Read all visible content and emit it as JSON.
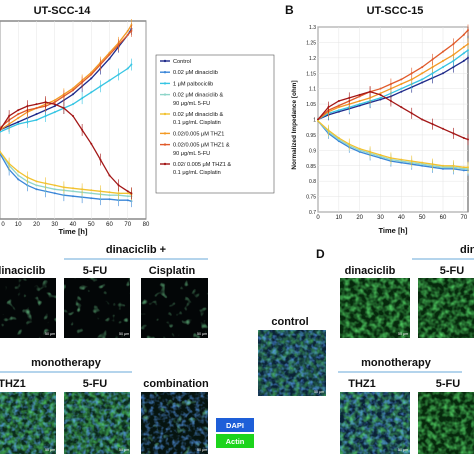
{
  "panel_a": {
    "title": "UT-SCC-14",
    "xlabel": "Time [h]",
    "legend": [
      {
        "label": "Control",
        "color": "#1f2a8a"
      },
      {
        "label": "0.02 μM dinaciclib",
        "color": "#3a86d8"
      },
      {
        "label": "1 μM palbociclib",
        "color": "#36c5e3"
      },
      {
        "label": "0.02 μM dinaciclib &",
        "label2": "90 μg/mL 5-FU",
        "color": "#8fd5c9"
      },
      {
        "label": "0.02 μM dinaciclib &",
        "label2": "0.1 μg/mL Cisplatin",
        "color": "#f2c230"
      },
      {
        "label": "0.02/0.005 μM THZ1",
        "color": "#f39a24"
      },
      {
        "label": "0.02/0.005 μM THZ1 &",
        "label2": "90 μg/mL 5-FU",
        "color": "#e05a2a"
      },
      {
        "label": "0.02/ 0.005 μM THZ1 &",
        "label2": "0.1 μg/mL Cisplatin",
        "color": "#a31616"
      }
    ],
    "xticks": [
      "0",
      "10",
      "20",
      "30",
      "40",
      "50",
      "60",
      "70",
      "80"
    ]
  },
  "panel_b": {
    "letter": "B",
    "title": "UT-SCC-15",
    "xlabel": "Time [h]",
    "ylabel": "Normalized Impedance [ohm]",
    "xticks": [
      "0",
      "10",
      "20",
      "30",
      "40",
      "50",
      "60",
      "70"
    ],
    "yticks": [
      "0.7",
      "0.75",
      "0.8",
      "0.85",
      "0.9",
      "0.95",
      "1",
      "1.05",
      "1.1",
      "1.15",
      "1.2",
      "1.25",
      "1.3"
    ]
  },
  "chart_data": [
    {
      "type": "line",
      "title": "UT-SCC-14",
      "xlabel": "Time [h]",
      "xlim": [
        0,
        80
      ],
      "ylim": [
        0,
        1
      ],
      "series": [
        {
          "name": "Control",
          "color": "#1f2a8a",
          "x": [
            0,
            5,
            10,
            15,
            20,
            25,
            30,
            35,
            40,
            45,
            50,
            55,
            60,
            65,
            70,
            72
          ],
          "y": [
            0.45,
            0.47,
            0.49,
            0.51,
            0.53,
            0.55,
            0.57,
            0.6,
            0.63,
            0.67,
            0.71,
            0.76,
            0.81,
            0.87,
            0.93,
            0.96
          ]
        },
        {
          "name": "0.02 μM dinaciclib",
          "color": "#3a86d8",
          "x": [
            0,
            5,
            10,
            15,
            20,
            25,
            30,
            35,
            40,
            45,
            50,
            55,
            60,
            65,
            70,
            72
          ],
          "y": [
            0.33,
            0.25,
            0.2,
            0.17,
            0.15,
            0.14,
            0.13,
            0.12,
            0.115,
            0.11,
            0.105,
            0.1,
            0.1,
            0.095,
            0.095,
            0.09
          ]
        },
        {
          "name": "1 μM palbociclib",
          "color": "#36c5e3",
          "x": [
            0,
            5,
            10,
            15,
            20,
            25,
            30,
            35,
            40,
            45,
            50,
            55,
            60,
            65,
            70,
            72
          ],
          "y": [
            0.44,
            0.46,
            0.48,
            0.49,
            0.5,
            0.52,
            0.54,
            0.56,
            0.58,
            0.61,
            0.64,
            0.67,
            0.7,
            0.73,
            0.76,
            0.78
          ]
        },
        {
          "name": "0.02 μM dinaciclib & 90 μg/mL 5-FU",
          "color": "#8fd5c9",
          "x": [
            0,
            5,
            10,
            15,
            20,
            25,
            30,
            35,
            40,
            45,
            50,
            55,
            60,
            65,
            70,
            72
          ],
          "y": [
            0.34,
            0.27,
            0.22,
            0.19,
            0.17,
            0.16,
            0.15,
            0.145,
            0.14,
            0.135,
            0.13,
            0.125,
            0.12,
            0.12,
            0.115,
            0.115
          ]
        },
        {
          "name": "0.02 μM dinaciclib & 0.1 μg/mL Cisplatin",
          "color": "#f2c230",
          "x": [
            0,
            5,
            10,
            15,
            20,
            25,
            30,
            35,
            40,
            45,
            50,
            55,
            60,
            65,
            70,
            72
          ],
          "y": [
            0.34,
            0.28,
            0.24,
            0.21,
            0.19,
            0.18,
            0.17,
            0.16,
            0.155,
            0.15,
            0.145,
            0.14,
            0.135,
            0.13,
            0.13,
            0.125
          ]
        },
        {
          "name": "0.02/0.005 μM THZ1",
          "color": "#f39a24",
          "x": [
            0,
            5,
            10,
            15,
            20,
            25,
            30,
            35,
            40,
            45,
            50,
            55,
            60,
            65,
            70,
            72
          ],
          "y": [
            0.45,
            0.48,
            0.51,
            0.54,
            0.56,
            0.58,
            0.6,
            0.63,
            0.66,
            0.7,
            0.74,
            0.79,
            0.84,
            0.89,
            0.95,
            0.98
          ]
        },
        {
          "name": "0.02/0.005 μM THZ1 & 90 μg/mL 5-FU",
          "color": "#e05a2a",
          "x": [
            0,
            5,
            10,
            15,
            20,
            25,
            30,
            35,
            40,
            45,
            50,
            55,
            60,
            65,
            70,
            72
          ],
          "y": [
            0.46,
            0.5,
            0.53,
            0.55,
            0.56,
            0.57,
            0.59,
            0.62,
            0.65,
            0.69,
            0.73,
            0.78,
            0.83,
            0.88,
            0.93,
            0.95
          ]
        },
        {
          "name": "0.02/ 0.005 μM THZ1 & 0.1 μg/mL Cisplatin",
          "color": "#a31616",
          "x": [
            0,
            5,
            10,
            15,
            20,
            25,
            30,
            35,
            40,
            45,
            50,
            55,
            60,
            65,
            70,
            72
          ],
          "y": [
            0.45,
            0.52,
            0.55,
            0.57,
            0.58,
            0.59,
            0.58,
            0.56,
            0.52,
            0.45,
            0.38,
            0.3,
            0.22,
            0.17,
            0.14,
            0.13
          ]
        }
      ]
    },
    {
      "type": "line",
      "title": "UT-SCC-15",
      "xlabel": "Time [h]",
      "ylabel": "Normalized Impedance [ohm]",
      "xlim": [
        0,
        72
      ],
      "ylim": [
        0.7,
        1.3
      ],
      "series": [
        {
          "color": "#1f2a8a",
          "x": [
            0,
            5,
            10,
            15,
            20,
            25,
            30,
            35,
            40,
            45,
            50,
            55,
            60,
            65,
            70,
            72
          ],
          "y": [
            1.0,
            1.015,
            1.025,
            1.035,
            1.045,
            1.055,
            1.065,
            1.075,
            1.09,
            1.105,
            1.12,
            1.135,
            1.15,
            1.17,
            1.19,
            1.2
          ]
        },
        {
          "color": "#36c5e3",
          "x": [
            0,
            5,
            10,
            15,
            20,
            25,
            30,
            35,
            40,
            45,
            50,
            55,
            60,
            65,
            70,
            72
          ],
          "y": [
            1.0,
            1.02,
            1.03,
            1.04,
            1.05,
            1.06,
            1.07,
            1.085,
            1.1,
            1.115,
            1.13,
            1.15,
            1.17,
            1.19,
            1.215,
            1.225
          ]
        },
        {
          "color": "#f39a24",
          "x": [
            0,
            5,
            10,
            15,
            20,
            25,
            30,
            35,
            40,
            45,
            50,
            55,
            60,
            65,
            70,
            72
          ],
          "y": [
            1.0,
            1.025,
            1.04,
            1.05,
            1.06,
            1.07,
            1.085,
            1.1,
            1.115,
            1.13,
            1.15,
            1.17,
            1.19,
            1.21,
            1.235,
            1.245
          ]
        },
        {
          "color": "#e05a2a",
          "x": [
            0,
            5,
            10,
            15,
            20,
            25,
            30,
            35,
            40,
            45,
            50,
            55,
            60,
            65,
            70,
            72
          ],
          "y": [
            1.0,
            1.03,
            1.045,
            1.06,
            1.075,
            1.09,
            1.1,
            1.115,
            1.13,
            1.15,
            1.17,
            1.195,
            1.22,
            1.245,
            1.275,
            1.29
          ]
        },
        {
          "color": "#a31616",
          "x": [
            0,
            5,
            10,
            15,
            20,
            25,
            30,
            35,
            40,
            45,
            50,
            55,
            60,
            65,
            70,
            72
          ],
          "y": [
            1.0,
            1.04,
            1.06,
            1.07,
            1.08,
            1.09,
            1.08,
            1.06,
            1.04,
            1.02,
            1.0,
            0.985,
            0.97,
            0.955,
            0.94,
            0.935
          ]
        },
        {
          "color": "#3a86d8",
          "x": [
            0,
            5,
            10,
            15,
            20,
            25,
            30,
            35,
            40,
            45,
            50,
            55,
            60,
            65,
            70,
            72
          ],
          "y": [
            0.995,
            0.955,
            0.93,
            0.91,
            0.895,
            0.885,
            0.875,
            0.865,
            0.86,
            0.855,
            0.85,
            0.845,
            0.84,
            0.84,
            0.835,
            0.835
          ]
        },
        {
          "color": "#8fd5c9",
          "x": [
            0,
            5,
            10,
            15,
            20,
            25,
            30,
            35,
            40,
            45,
            50,
            55,
            60,
            65,
            70,
            72
          ],
          "y": [
            0.995,
            0.96,
            0.935,
            0.915,
            0.9,
            0.89,
            0.88,
            0.87,
            0.865,
            0.86,
            0.855,
            0.85,
            0.845,
            0.845,
            0.84,
            0.84
          ]
        },
        {
          "color": "#f2c230",
          "x": [
            0,
            5,
            10,
            15,
            20,
            25,
            30,
            35,
            40,
            45,
            50,
            55,
            60,
            65,
            70,
            72
          ],
          "y": [
            0.995,
            0.965,
            0.94,
            0.92,
            0.905,
            0.895,
            0.885,
            0.875,
            0.87,
            0.865,
            0.86,
            0.855,
            0.85,
            0.85,
            0.845,
            0.845
          ]
        }
      ]
    }
  ],
  "panel_c": {
    "group_header": "dinaciclib +",
    "labels": [
      "dinaciclib",
      "5-FU",
      "Cisplatin"
    ],
    "mono_header": "monotherapy",
    "bottom_labels": [
      "THZ1",
      "5-FU",
      "combination"
    ],
    "scalebar": "50 μm"
  },
  "panel_d": {
    "letter": "D",
    "group_header": "din",
    "control_label": "control",
    "labels": [
      "dinaciclib",
      "5-FU"
    ],
    "mono_header": "monotherapy",
    "bottom_labels": [
      "THZ1",
      "5-FU"
    ]
  },
  "legend_stain": {
    "dapi": "DAPI",
    "actin": "Actin",
    "dapi_color": "#1e5fd8",
    "actin_color": "#1cd41c"
  }
}
